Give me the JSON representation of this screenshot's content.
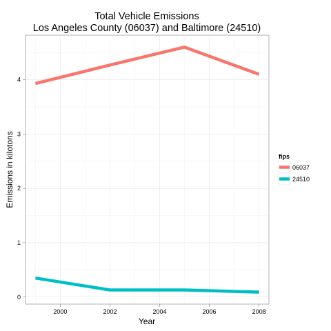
{
  "chart_data": {
    "type": "line",
    "title": [
      "Total Vehicle Emissions",
      "Los Angeles County (06037) and Baltimore (24510)"
    ],
    "xlabel": "Year",
    "ylabel": "Emissions in kilotons",
    "xlim": [
      1998.6,
      2008.4
    ],
    "ylim": [
      -0.13,
      4.82
    ],
    "x_ticks": [
      2000,
      2002,
      2004,
      2006,
      2008
    ],
    "y_ticks": [
      0,
      1,
      2,
      3,
      4
    ],
    "grid": true,
    "legend": {
      "title": "fips",
      "position": "right"
    },
    "x": [
      1999,
      2002,
      2005,
      2008
    ],
    "series": [
      {
        "name": "06037",
        "color": "#F8766D",
        "values": [
          3.93,
          4.27,
          4.6,
          4.1
        ]
      },
      {
        "name": "24510",
        "color": "#00BFC4",
        "values": [
          0.35,
          0.13,
          0.13,
          0.09
        ]
      }
    ]
  }
}
